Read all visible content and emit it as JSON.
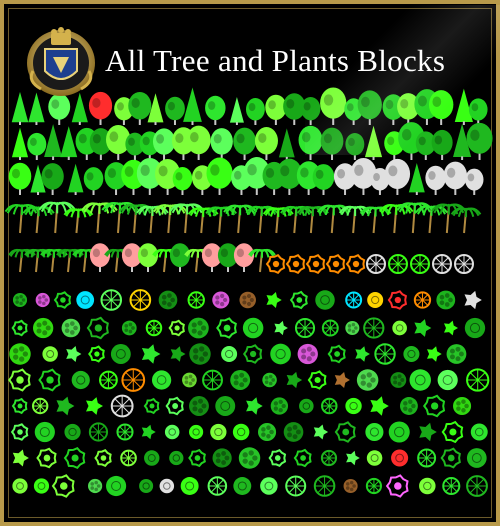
{
  "header": {
    "title": "All Tree and Plants Blocks",
    "logo_icon": "crest-shield-icon"
  },
  "colors": {
    "frame_gold": "#b89a4a",
    "background": "#000000",
    "plant_green": "#22d322",
    "bright_green": "#39ff14",
    "title_white": "#ffffff"
  },
  "gallery": {
    "icon": "plant-block-icon",
    "row_types": [
      "side-view-trees",
      "side-view-trees",
      "side-view-trees",
      "palms",
      "mixed-elevation",
      "plan-view-colored",
      "plan-view",
      "plan-view",
      "plan-view",
      "plan-view",
      "plan-view",
      "plan-view",
      "plan-view"
    ]
  }
}
